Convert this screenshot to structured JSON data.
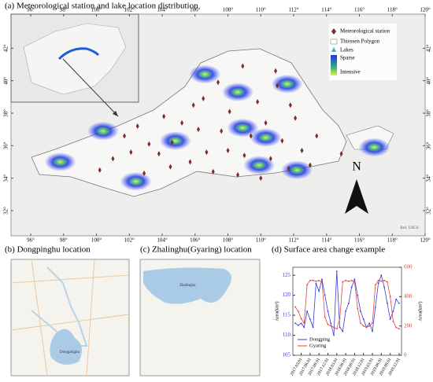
{
  "map": {
    "title": "(a) Meteorological station and lake location distribution",
    "lonticks": [
      {
        "value": 96,
        "label": "96°"
      },
      {
        "value": 98,
        "label": "98°"
      },
      {
        "value": 100,
        "label": "100°"
      },
      {
        "value": 102,
        "label": "102°"
      },
      {
        "value": 104,
        "label": "104°"
      },
      {
        "value": 106,
        "label": "106°"
      },
      {
        "value": 108,
        "label": "108°"
      },
      {
        "value": 110,
        "label": "110°"
      },
      {
        "value": 112,
        "label": "112°"
      },
      {
        "value": 114,
        "label": "114°"
      },
      {
        "value": 116,
        "label": "116°"
      },
      {
        "value": 118,
        "label": "118°"
      },
      {
        "value": 120,
        "label": "120°"
      }
    ],
    "latticks": [
      {
        "value": 32,
        "label": "32°"
      },
      {
        "value": 34,
        "label": "34°"
      },
      {
        "value": 36,
        "label": "36°"
      },
      {
        "value": 38,
        "label": "38°"
      },
      {
        "value": 40,
        "label": "40°"
      },
      {
        "value": 42,
        "label": "42°"
      }
    ],
    "lonlim": [
      94.8,
      120
    ],
    "latlim": [
      30.45,
      44.1
    ],
    "legend": {
      "station": "Meteorological station",
      "polygon": "Thiessen Polygon",
      "lakes": "Lakes",
      "sparse": "Sparse",
      "intensive": "Intensive"
    },
    "north": "N",
    "credit": "Esri, USGS",
    "stations": [
      [
        101.7,
        36.6
      ],
      [
        102.5,
        37.2
      ],
      [
        103.2,
        36.1
      ],
      [
        103.8,
        35.5
      ],
      [
        104.6,
        36.2
      ],
      [
        105.2,
        37.4
      ],
      [
        105.9,
        38.5
      ],
      [
        106.2,
        37.0
      ],
      [
        106.7,
        35.6
      ],
      [
        107.1,
        34.4
      ],
      [
        107.6,
        36.9
      ],
      [
        108.1,
        38.1
      ],
      [
        108.6,
        34.2
      ],
      [
        109.0,
        35.4
      ],
      [
        109.4,
        36.6
      ],
      [
        109.8,
        38.7
      ],
      [
        110.3,
        37.4
      ],
      [
        110.6,
        35.2
      ],
      [
        111.0,
        39.7
      ],
      [
        111.3,
        36.3
      ],
      [
        111.7,
        34.6
      ],
      [
        112.1,
        37.7
      ],
      [
        112.5,
        35.7
      ],
      [
        113.0,
        34.8
      ],
      [
        113.4,
        36.6
      ],
      [
        110.9,
        40.6
      ],
      [
        108.9,
        40.9
      ],
      [
        107.4,
        39.9
      ],
      [
        104.1,
        37.8
      ],
      [
        101.0,
        35.2
      ],
      [
        100.2,
        34.5
      ],
      [
        102.9,
        34.3
      ],
      [
        104.5,
        34.7
      ],
      [
        105.7,
        35.0
      ],
      [
        108.0,
        35.7
      ],
      [
        110.0,
        34.0
      ],
      [
        111.8,
        38.5
      ],
      [
        114.9,
        35.5
      ],
      [
        106.5,
        38.9
      ],
      [
        102.1,
        35.6
      ]
    ],
    "lakes": [
      [
        97.8,
        35.0
      ],
      [
        102.4,
        33.8
      ],
      [
        108.6,
        39.3
      ],
      [
        116.9,
        35.9
      ],
      [
        104.8,
        36.3
      ],
      [
        109.9,
        34.8
      ],
      [
        112.2,
        34.5
      ],
      [
        110.3,
        36.5
      ],
      [
        106.6,
        40.4
      ],
      [
        100.4,
        36.9
      ],
      [
        111.6,
        39.8
      ],
      [
        108.9,
        37.1
      ]
    ]
  },
  "panel_b": {
    "title": "(b) Dongpinghu location",
    "lake": "Dongpinghu"
  },
  "panel_c": {
    "title": "(c) Zhalinghu(Gyaring) location",
    "lake": "Zhalinghu"
  },
  "chart_data": {
    "type": "line",
    "title": "(d) Surface area change example",
    "categories": [
      null,
      null,
      "2017.03.01",
      null,
      null,
      "2017.06.01",
      null,
      null,
      "2017.09.01",
      null,
      null,
      "2017.12.01",
      null,
      null,
      "2018.03.01",
      null,
      null,
      "2018.06.01",
      null,
      null,
      "2018.09.01",
      null,
      null,
      "2018.12.01",
      null,
      null,
      "2019.03.01",
      null,
      null,
      "2019.06.01",
      null,
      null,
      "2019.09.01",
      null,
      null,
      "2019.12.01"
    ],
    "series": [
      {
        "name": "Dongping",
        "color": "#3b3bd6",
        "values": [
          113,
          112.5,
          113,
          112,
          116,
          114,
          112,
          123,
          121,
          124,
          120,
          116,
          113,
          110,
          126,
          112,
          111,
          116,
          118,
          122,
          124,
          120,
          116,
          114,
          112,
          113,
          111,
          117,
          123,
          125,
          122,
          118,
          114,
          116,
          119,
          118
        ]
      },
      {
        "name": "Gyaring",
        "color": "#e0443a",
        "axis": "y2",
        "values": [
          330,
          300,
          250,
          220,
          480,
          510,
          510,
          505,
          510,
          500,
          260,
          210,
          200,
          190,
          180,
          250,
          500,
          510,
          505,
          510,
          500,
          320,
          220,
          200,
          190,
          200,
          220,
          480,
          510,
          505,
          510,
          500,
          400,
          230,
          190,
          180
        ]
      }
    ],
    "ylabel": "Area(km²)",
    "y2label": "Area(km²)",
    "ylim": [
      105,
      127
    ],
    "yticks": [
      105,
      110,
      115,
      120,
      125
    ],
    "y2lim": [
      0,
      600
    ],
    "y2ticks": [
      0,
      200,
      400,
      600
    ]
  }
}
